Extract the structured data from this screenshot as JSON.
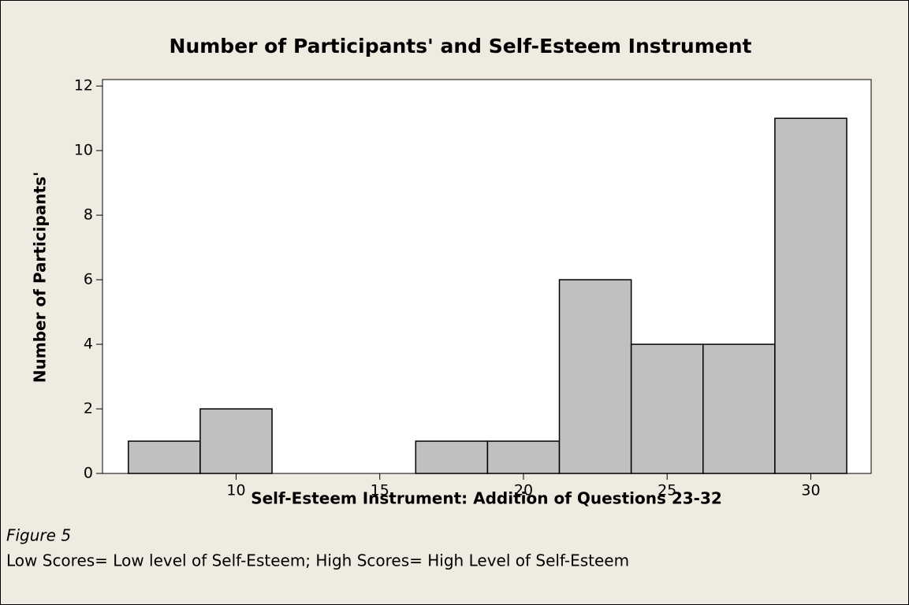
{
  "chart_data": {
    "type": "histogram",
    "title": "Number of Participants' and Self-Esteem Instrument",
    "xlabel": "Self-Esteem Instrument: Addition of Questions 23-32",
    "ylabel": "Number of Participants'",
    "bins": [
      6.25,
      8.75,
      11.25,
      13.75,
      16.25,
      18.75,
      21.25,
      23.75,
      26.25,
      28.75,
      31.25
    ],
    "values": [
      1,
      2,
      0,
      0,
      1,
      1,
      6,
      4,
      4,
      11
    ],
    "color": "#c0c0c0",
    "xlim": [
      5.35,
      32.1
    ],
    "xticks": [
      10,
      15,
      20,
      25,
      30
    ],
    "ylim": [
      0,
      12.2
    ],
    "yticks": [
      0,
      2,
      4,
      6,
      8,
      10,
      12
    ]
  },
  "figure": {
    "label": "Figure 5",
    "note": "Low Scores= Low level of Self-Esteem; High Scores= High Level of Self-Esteem"
  }
}
